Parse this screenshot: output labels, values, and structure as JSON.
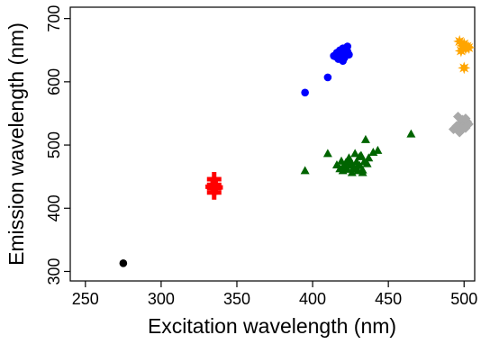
{
  "chart_data": {
    "type": "scatter",
    "title": "",
    "xlabel": "Excitation wavelength (nm)",
    "ylabel": "Emission wavelength (nm)",
    "xlim": [
      240,
      507
    ],
    "ylim": [
      285,
      718
    ],
    "xticks": [
      250,
      300,
      350,
      400,
      450,
      500
    ],
    "yticks": [
      300,
      400,
      500,
      600,
      700
    ],
    "grid": false,
    "legend": "none",
    "series": [
      {
        "marker": "circle",
        "color": "#000000",
        "x": [
          275
        ],
        "y": [
          313
        ]
      },
      {
        "marker": "plus",
        "color": "#ff0000",
        "x": [
          335,
          335,
          335,
          335,
          334,
          336
        ],
        "y": [
          425,
          432,
          437,
          446,
          434,
          433
        ]
      },
      {
        "marker": "circle",
        "color": "#0000ff",
        "x": [
          395,
          410,
          414,
          416,
          417,
          418,
          419,
          420,
          420,
          421,
          422,
          423,
          424,
          415,
          418,
          421,
          423,
          419
        ],
        "y": [
          583,
          607,
          641,
          646,
          636,
          648,
          639,
          653,
          633,
          645,
          642,
          656,
          643,
          640,
          650,
          638,
          648,
          644
        ]
      },
      {
        "marker": "triangle",
        "color": "#006400",
        "x": [
          395,
          410,
          416,
          418,
          419,
          420,
          421,
          422,
          423,
          424,
          425,
          426,
          427,
          428,
          429,
          430,
          431,
          432,
          433,
          434,
          435,
          437,
          440,
          443,
          465,
          424,
          426,
          429,
          431,
          420,
          433,
          436
        ],
        "y": [
          459,
          486,
          468,
          462,
          474,
          459,
          466,
          472,
          461,
          479,
          468,
          456,
          464,
          486,
          473,
          459,
          467,
          483,
          460,
          473,
          508,
          479,
          488,
          491,
          517,
          476,
          470,
          462,
          481,
          465,
          456,
          470
        ],
        "fill": "#006400"
      },
      {
        "marker": "diamond",
        "color": "#a9a9a9",
        "x": [
          493,
          495,
          496,
          497,
          498,
          498,
          499,
          500,
          501,
          502,
          503,
          497,
          499,
          501
        ],
        "y": [
          525,
          530,
          545,
          523,
          536,
          527,
          540,
          531,
          527,
          537,
          533,
          520,
          525,
          542
        ]
      },
      {
        "marker": "star",
        "color": "#ffa500",
        "x": [
          497,
          498,
          499,
          500,
          501,
          502,
          503,
          500
        ],
        "y": [
          664,
          649,
          657,
          660,
          653,
          656,
          654,
          622
        ]
      }
    ]
  }
}
